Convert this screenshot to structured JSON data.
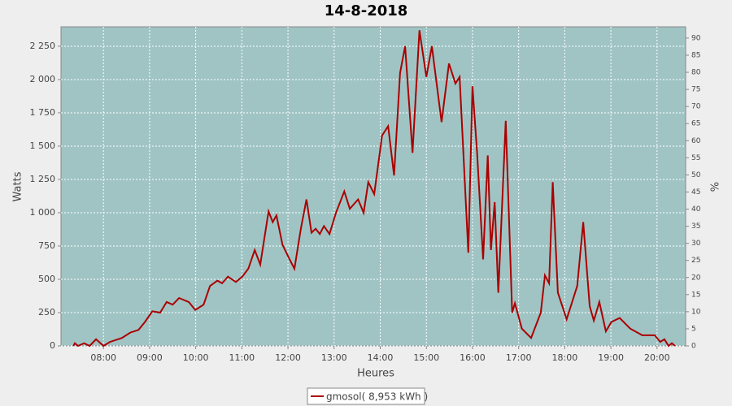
{
  "chart_data": {
    "type": "line",
    "title": "14-8-2018",
    "x_label": "Heures",
    "y_label": "Watts",
    "y2_label": "%",
    "xlim": [
      7.08,
      20.62
    ],
    "xticks": [
      {
        "value": 8,
        "label": "08:00"
      },
      {
        "value": 9,
        "label": "09:00"
      },
      {
        "value": 10,
        "label": "10:00"
      },
      {
        "value": 11,
        "label": "11:00"
      },
      {
        "value": 12,
        "label": "12:00"
      },
      {
        "value": 13,
        "label": "13:00"
      },
      {
        "value": 14,
        "label": "14:00"
      },
      {
        "value": 15,
        "label": "15:00"
      },
      {
        "value": 16,
        "label": "16:00"
      },
      {
        "value": 17,
        "label": "17:00"
      },
      {
        "value": 18,
        "label": "18:00"
      },
      {
        "value": 19,
        "label": "19:00"
      },
      {
        "value": 20,
        "label": "20:00"
      }
    ],
    "ylim": [
      0,
      2396
    ],
    "yticks": [
      0,
      250,
      500,
      750,
      {
        "value": 1000,
        "label": "1 000"
      },
      {
        "value": 1250,
        "label": "1 250"
      },
      {
        "value": 1500,
        "label": "1 500"
      },
      {
        "value": 1750,
        "label": "1 750"
      },
      {
        "value": 2000,
        "label": "2 000"
      },
      {
        "value": 2250,
        "label": "2 250"
      }
    ],
    "y2lim": [
      0,
      93.3
    ],
    "y2ticks": [
      0,
      5,
      10,
      15,
      20,
      25,
      30,
      35,
      40,
      45,
      50,
      55,
      60,
      65,
      70,
      75,
      80,
      85,
      90
    ],
    "grid": true,
    "background": "#a0c4c4",
    "legend": "bottom",
    "x": [
      7.35,
      7.38,
      7.45,
      7.58,
      7.7,
      7.84,
      8.0,
      8.14,
      8.4,
      8.58,
      8.76,
      8.9,
      9.06,
      9.23,
      9.37,
      9.5,
      9.64,
      9.85,
      9.99,
      10.17,
      10.31,
      10.47,
      10.57,
      10.7,
      10.87,
      11.01,
      11.14,
      11.28,
      11.4,
      11.58,
      11.67,
      11.75,
      11.88,
      12.02,
      12.14,
      12.28,
      12.4,
      12.51,
      12.6,
      12.69,
      12.78,
      12.9,
      13.04,
      13.22,
      13.34,
      13.52,
      13.64,
      13.74,
      13.87,
      14.04,
      14.17,
      14.3,
      14.43,
      14.54,
      14.7,
      14.85,
      15.0,
      15.12,
      15.33,
      15.49,
      15.63,
      15.72,
      15.91,
      16.0,
      16.1,
      16.23,
      16.33,
      16.4,
      16.48,
      16.56,
      16.72,
      16.86,
      16.92,
      17.07,
      17.27,
      17.48,
      17.57,
      17.66,
      17.74,
      17.85,
      18.04,
      18.27,
      18.4,
      18.54,
      18.63,
      18.75,
      18.89,
      19.01,
      19.19,
      19.42,
      19.68,
      19.95,
      20.07,
      20.16,
      20.25,
      20.32,
      20.39
    ],
    "series": [
      {
        "name": "gmosol( 8,953 kWh )",
        "color": "#aa0000",
        "values": [
          0,
          20,
          0,
          20,
          0,
          50,
          0,
          30,
          60,
          100,
          120,
          180,
          260,
          250,
          330,
          310,
          360,
          330,
          270,
          310,
          450,
          490,
          470,
          520,
          480,
          520,
          580,
          720,
          610,
          1010,
          930,
          980,
          760,
          660,
          580,
          880,
          1100,
          850,
          880,
          840,
          900,
          840,
          1000,
          1160,
          1030,
          1100,
          1000,
          1230,
          1140,
          1580,
          1650,
          1280,
          2050,
          2250,
          1450,
          2370,
          2020,
          2250,
          1680,
          2120,
          1970,
          2020,
          700,
          1950,
          1450,
          650,
          1430,
          720,
          1080,
          400,
          1690,
          250,
          320,
          130,
          60,
          250,
          530,
          470,
          1230,
          400,
          200,
          450,
          930,
          300,
          190,
          330,
          110,
          180,
          210,
          130,
          80,
          80,
          30,
          50,
          0,
          20,
          0
        ]
      }
    ]
  }
}
